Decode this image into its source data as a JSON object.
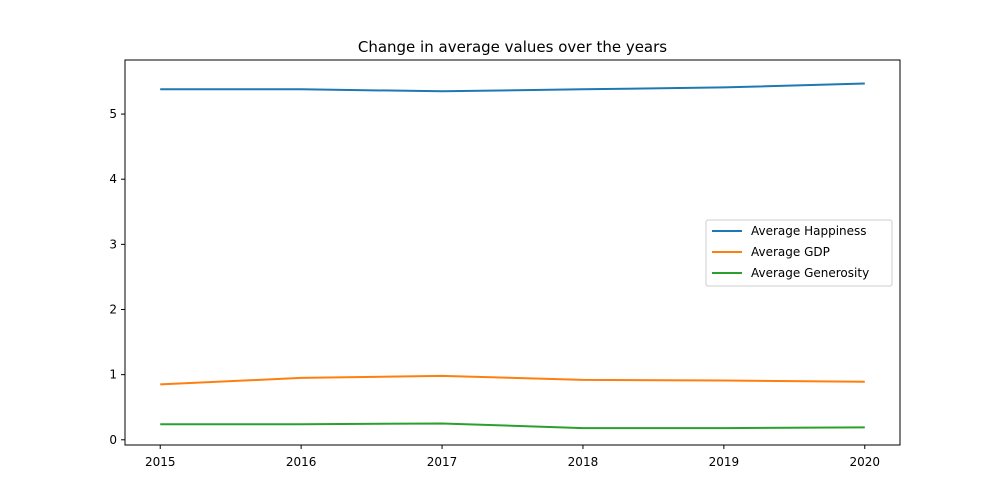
{
  "chart_data": {
    "type": "line",
    "title": "Change in average values over the years",
    "xlabel": "",
    "ylabel": "",
    "x": [
      2015,
      2016,
      2017,
      2018,
      2019,
      2020
    ],
    "x_ticks": [
      "2015",
      "2016",
      "2017",
      "2018",
      "2019",
      "2020"
    ],
    "y_ticks": [
      "0",
      "1",
      "2",
      "3",
      "4",
      "5"
    ],
    "xlim": [
      2014.75,
      2020.25
    ],
    "ylim": [
      -0.08,
      5.83
    ],
    "grid": false,
    "legend_position": "center-right",
    "series": [
      {
        "name": "Average Happiness",
        "color": "#1f77b4",
        "values": [
          5.38,
          5.38,
          5.35,
          5.38,
          5.41,
          5.47
        ]
      },
      {
        "name": "Average GDP",
        "color": "#ff7f0e",
        "values": [
          0.85,
          0.95,
          0.98,
          0.92,
          0.91,
          0.89
        ]
      },
      {
        "name": "Average Generosity",
        "color": "#2ca02c",
        "values": [
          0.24,
          0.24,
          0.25,
          0.18,
          0.18,
          0.19
        ]
      }
    ]
  }
}
